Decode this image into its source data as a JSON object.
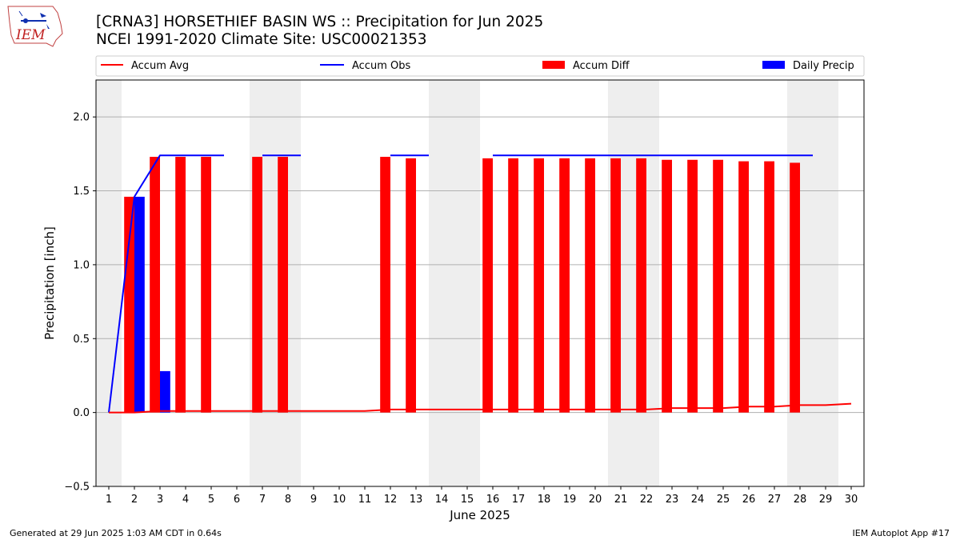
{
  "header": {
    "logo_text": "IEM",
    "title_line1": "[CRNA3] HORSETHIEF BASIN WS :: Precipitation for Jun 2025",
    "title_line2": "NCEI 1991-2020 Climate Site: USC00021353"
  },
  "footer": {
    "left": "Generated at 29 Jun 2025 1:03 AM CDT in 0.64s",
    "right": "IEM Autoplot App #17"
  },
  "colors": {
    "accum_avg": "#ff0000",
    "accum_obs": "#0000ff",
    "accum_diff": "#ff0000",
    "daily_precip": "#0000ff",
    "weekend_shade": "#eeeeee",
    "grid": "#b0b0b0"
  },
  "chart_data": {
    "type": "bar",
    "title": "[CRNA3] HORSETHIEF BASIN WS :: Precipitation for Jun 2025",
    "subtitle": "NCEI 1991-2020 Climate Site: USC00021353",
    "xlabel": "June 2025",
    "ylabel": "Precipitation [inch]",
    "xlim": [
      0.5,
      30.5
    ],
    "ylim": [
      -0.5,
      2.25
    ],
    "yticks": [
      -0.5,
      0.0,
      0.5,
      1.0,
      1.5,
      2.0
    ],
    "ytick_labels": [
      "−0.5",
      "0.0",
      "0.5",
      "1.0",
      "1.5",
      "2.0"
    ],
    "x": [
      1,
      2,
      3,
      4,
      5,
      6,
      7,
      8,
      9,
      10,
      11,
      12,
      13,
      14,
      15,
      16,
      17,
      18,
      19,
      20,
      21,
      22,
      23,
      24,
      25,
      26,
      27,
      28,
      29,
      30
    ],
    "xtick_labels": [
      "1",
      "2",
      "3",
      "4",
      "5",
      "6",
      "7",
      "8",
      "9",
      "10",
      "11",
      "12",
      "13",
      "14",
      "15",
      "16",
      "17",
      "18",
      "19",
      "20",
      "21",
      "22",
      "23",
      "24",
      "25",
      "26",
      "27",
      "28",
      "29",
      "30"
    ],
    "grid": "y",
    "legend_placement": "top",
    "weekend_shading": [
      [
        0.5,
        1.5
      ],
      [
        6.5,
        8.5
      ],
      [
        13.5,
        15.5
      ],
      [
        20.5,
        22.5
      ],
      [
        27.5,
        29.5
      ]
    ],
    "series": [
      {
        "name": "Accum Avg",
        "kind": "line",
        "values": [
          0.0,
          0.0,
          0.01,
          0.01,
          0.01,
          0.01,
          0.01,
          0.01,
          0.01,
          0.01,
          0.01,
          0.02,
          0.02,
          0.02,
          0.02,
          0.02,
          0.02,
          0.02,
          0.02,
          0.02,
          0.02,
          0.02,
          0.03,
          0.03,
          0.03,
          0.04,
          0.04,
          0.05,
          0.05,
          0.06
        ]
      },
      {
        "name": "Accum Obs",
        "kind": "line",
        "values": [
          0.0,
          1.46,
          1.74,
          1.74,
          1.74,
          null,
          1.74,
          1.74,
          null,
          null,
          null,
          1.74,
          1.74,
          null,
          null,
          1.74,
          1.74,
          1.74,
          1.74,
          1.74,
          1.74,
          1.74,
          1.74,
          1.74,
          1.74,
          1.74,
          1.74,
          1.74,
          null,
          null
        ]
      },
      {
        "name": "Accum Diff",
        "kind": "bar",
        "values": [
          0.0,
          1.46,
          1.73,
          1.73,
          1.73,
          null,
          1.73,
          1.73,
          null,
          null,
          null,
          1.73,
          1.72,
          null,
          null,
          1.72,
          1.72,
          1.72,
          1.72,
          1.72,
          1.72,
          1.72,
          1.71,
          1.71,
          1.71,
          1.7,
          1.7,
          1.69,
          null,
          null
        ]
      },
      {
        "name": "Daily Precip",
        "kind": "bar",
        "values": [
          0.0,
          1.46,
          0.28,
          0.0,
          0.0,
          null,
          0.0,
          0.0,
          null,
          null,
          null,
          0.0,
          0.0,
          null,
          null,
          0.0,
          0.0,
          0.0,
          0.0,
          0.0,
          0.0,
          0.0,
          0.0,
          0.0,
          0.0,
          0.0,
          0.0,
          0.0,
          null,
          null
        ]
      }
    ]
  }
}
